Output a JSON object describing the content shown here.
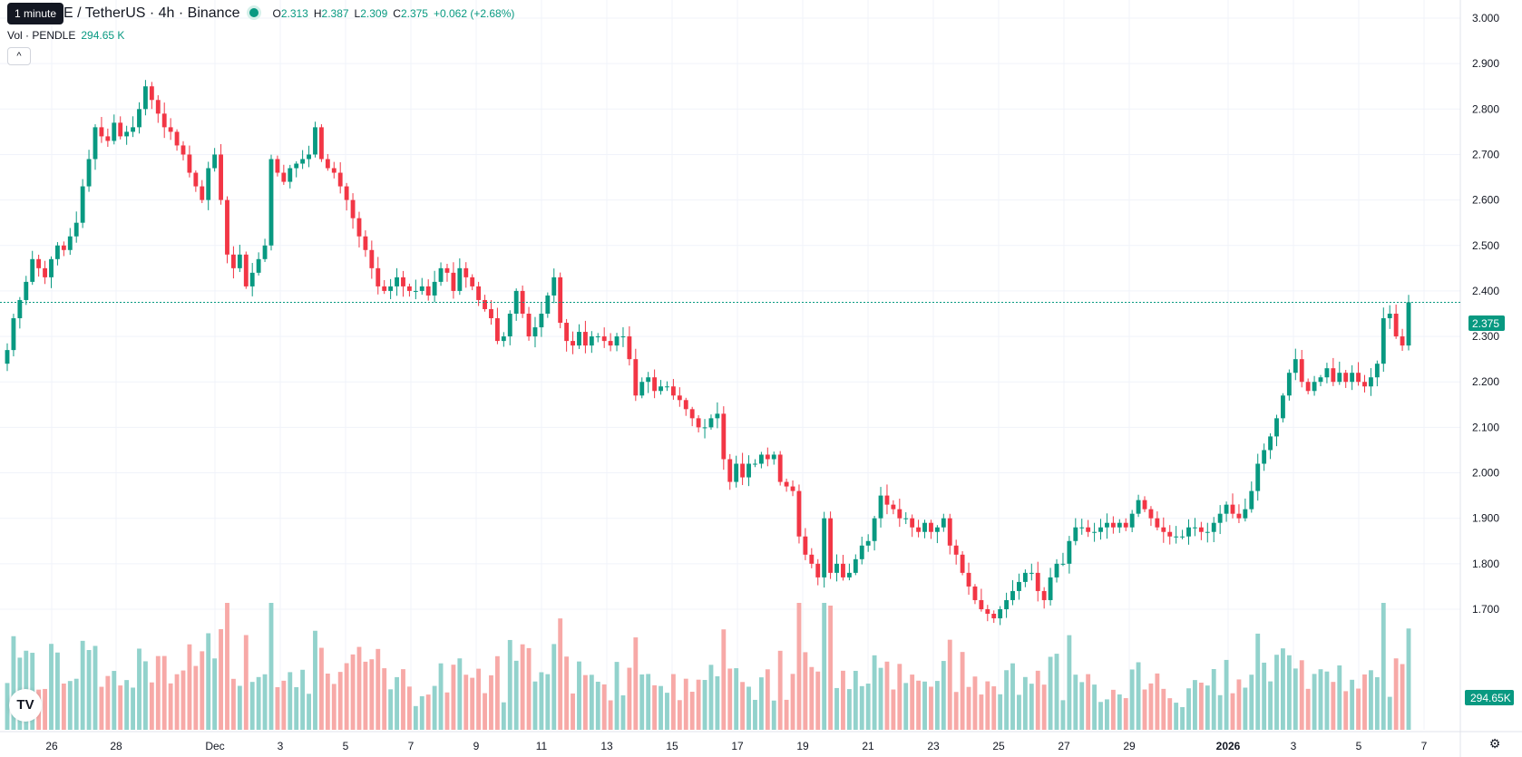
{
  "header": {
    "symbol": "E / TetherUS · 4h · Binance",
    "tooltip": "1 minute",
    "ohlc": {
      "o_label": "O",
      "o": "2.313",
      "h_label": "H",
      "h": "2.387",
      "l_label": "L",
      "l": "2.309",
      "c_label": "C",
      "c": "2.375",
      "change": "+0.062 (+2.68%)"
    }
  },
  "volume_legend": {
    "label": "Vol · PENDLE",
    "value": "294.65 K"
  },
  "collapse_symbol": "^",
  "logo_text": "TV",
  "icons": {
    "logo": "tradingview-logo-icon",
    "settings": "gear-icon",
    "collapse": "chevron-up-icon"
  },
  "colors": {
    "up": "#089981",
    "down": "#f23645",
    "up_volume": "#92d2cc",
    "down_volume": "#f7a9a7",
    "grid": "#f0f3fa"
  },
  "chart_data": {
    "type": "candlestick",
    "interval": "4h",
    "y_axis": {
      "range": [
        1.61,
        3.02
      ],
      "ticks": [
        "3.000",
        "2.900",
        "2.800",
        "2.700",
        "2.600",
        "2.500",
        "2.400",
        "2.300",
        "2.200",
        "2.100",
        "2.000",
        "1.900",
        "1.800",
        "1.700"
      ]
    },
    "x_axis": {
      "ticks": [
        "26",
        "28",
        "Dec",
        "3",
        "5",
        "7",
        "9",
        "11",
        "13",
        "15",
        "17",
        "19",
        "21",
        "23",
        "25",
        "27",
        "29",
        "2026",
        "3",
        "5",
        "7"
      ],
      "tick_dates": [
        "Nov 26",
        "Nov 28",
        "Dec 1",
        "Dec 3",
        "Dec 5",
        "Dec 7",
        "Dec 9",
        "Dec 11",
        "Dec 13",
        "Dec 15",
        "Dec 17",
        "Dec 19",
        "Dec 21",
        "Dec 23",
        "Dec 25",
        "Dec 27",
        "Dec 29",
        "Jan 1",
        "Jan 3",
        "Jan 5",
        "Jan 7"
      ]
    },
    "last_price": "2.375",
    "last_volume": "294.65K",
    "close_series": [
      2.27,
      2.34,
      2.38,
      2.42,
      2.47,
      2.45,
      2.43,
      2.47,
      2.5,
      2.49,
      2.52,
      2.55,
      2.63,
      2.69,
      2.76,
      2.74,
      2.73,
      2.77,
      2.74,
      2.75,
      2.76,
      2.8,
      2.85,
      2.82,
      2.79,
      2.76,
      2.75,
      2.72,
      2.7,
      2.66,
      2.63,
      2.6,
      2.67,
      2.7,
      2.6,
      2.48,
      2.45,
      2.48,
      2.41,
      2.44,
      2.47,
      2.5,
      2.69,
      2.66,
      2.64,
      2.67,
      2.68,
      2.69,
      2.7,
      2.76,
      2.69,
      2.67,
      2.66,
      2.63,
      2.6,
      2.56,
      2.52,
      2.49,
      2.45,
      2.41,
      2.4,
      2.41,
      2.43,
      2.41,
      2.4,
      2.4,
      2.41,
      2.39,
      2.42,
      2.45,
      2.44,
      2.4,
      2.45,
      2.43,
      2.41,
      2.38,
      2.36,
      2.34,
      2.29,
      2.3,
      2.35,
      2.4,
      2.35,
      2.3,
      2.32,
      2.35,
      2.39,
      2.43,
      2.33,
      2.29,
      2.28,
      2.31,
      2.28,
      2.3,
      2.3,
      2.29,
      2.28,
      2.3,
      2.3,
      2.25,
      2.17,
      2.2,
      2.21,
      2.18,
      2.19,
      2.19,
      2.17,
      2.16,
      2.14,
      2.12,
      2.1,
      2.1,
      2.12,
      2.13,
      2.03,
      1.98,
      2.02,
      1.99,
      2.02,
      2.02,
      2.04,
      2.03,
      2.04,
      1.98,
      1.97,
      1.96,
      1.86,
      1.82,
      1.8,
      1.77,
      1.9,
      1.78,
      1.8,
      1.77,
      1.78,
      1.81,
      1.84,
      1.85,
      1.9,
      1.95,
      1.93,
      1.92,
      1.9,
      1.9,
      1.88,
      1.87,
      1.89,
      1.87,
      1.88,
      1.9,
      1.84,
      1.82,
      1.78,
      1.75,
      1.72,
      1.7,
      1.69,
      1.68,
      1.7,
      1.72,
      1.74,
      1.76,
      1.78,
      1.78,
      1.74,
      1.72,
      1.77,
      1.8,
      1.8,
      1.85,
      1.88,
      1.88,
      1.87,
      1.87,
      1.88,
      1.89,
      1.88,
      1.89,
      1.88,
      1.91,
      1.94,
      1.92,
      1.9,
      1.88,
      1.87,
      1.86,
      1.86,
      1.86,
      1.88,
      1.88,
      1.87,
      1.87,
      1.89,
      1.91,
      1.93,
      1.91,
      1.9,
      1.92,
      1.96,
      2.02,
      2.05,
      2.08,
      2.12,
      2.17,
      2.22,
      2.25,
      2.2,
      2.18,
      2.2,
      2.21,
      2.23,
      2.2,
      2.22,
      2.2,
      2.22,
      2.2,
      2.19,
      2.21,
      2.24,
      2.34,
      2.35,
      2.3,
      2.28,
      2.375
    ]
  }
}
